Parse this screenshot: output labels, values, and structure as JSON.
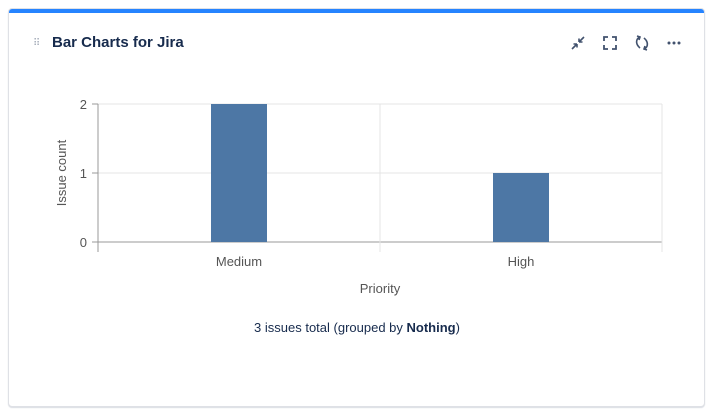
{
  "gadget": {
    "title": "Bar Charts for Jira",
    "accent": "#2684ff"
  },
  "actions": [
    {
      "name": "minimize-icon",
      "label": "Minimize"
    },
    {
      "name": "fullscreen-icon",
      "label": "Full screen"
    },
    {
      "name": "refresh-icon",
      "label": "Refresh"
    },
    {
      "name": "more-icon",
      "label": "More"
    }
  ],
  "chart_data": {
    "type": "bar",
    "categories": [
      "Medium",
      "High"
    ],
    "values": [
      2,
      1
    ],
    "xlabel": "Priority",
    "ylabel": "Issue count",
    "ylim": [
      0,
      2
    ],
    "yticks": [
      "0",
      "1",
      "2"
    ],
    "grid": true,
    "bar_color": "#4d77a5"
  },
  "footer": {
    "prefix": "3 issues total (grouped by ",
    "group": "Nothing",
    "suffix": ")"
  }
}
